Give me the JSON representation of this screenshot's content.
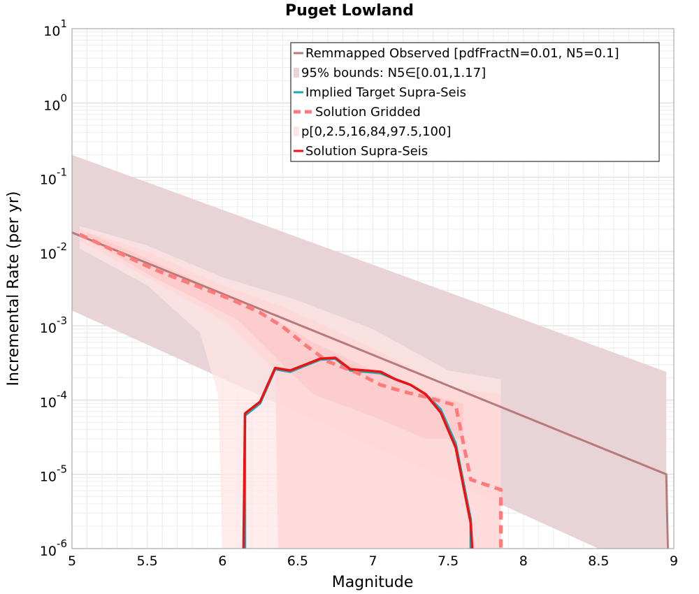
{
  "chart_data": {
    "type": "line",
    "title": "Puget Lowland",
    "xlabel": "Magnitude",
    "ylabel": "Incremental Rate (per yr)",
    "xlim": [
      5,
      9
    ],
    "ylim_log10": [
      -6,
      1
    ],
    "yscale": "log",
    "x_ticks": [
      "5",
      "5.5",
      "6",
      "6.5",
      "7",
      "7.5",
      "8",
      "8.5",
      "9"
    ],
    "y_ticks": [
      {
        "base": "10",
        "exp": "1"
      },
      {
        "base": "10",
        "exp": "0"
      },
      {
        "base": "10",
        "exp": "-1"
      },
      {
        "base": "10",
        "exp": "-2"
      },
      {
        "base": "10",
        "exp": "-3"
      },
      {
        "base": "10",
        "exp": "-4"
      },
      {
        "base": "10",
        "exp": "-5"
      },
      {
        "base": "10",
        "exp": "-6"
      }
    ],
    "grid": true,
    "legend_position": "top-right",
    "bands": [
      {
        "name": "95% bounds: N5∈[0.01,1.17]",
        "color": "#e8d4d6",
        "x": [
          5.0,
          8.95,
          8.95,
          8.5,
          5.0
        ],
        "y": [
          0.2,
          0.00024,
          1e-06,
          1e-06,
          0.0016
        ]
      },
      {
        "name": "p[0,2.5,16,84,97.5,100] outer",
        "color": "#ffe6e6",
        "x": [
          5.05,
          5.5,
          6.0,
          6.5,
          7.0,
          7.5,
          7.85,
          7.85,
          6.0,
          5.97,
          5.85,
          5.5,
          5.05
        ],
        "y": [
          0.022,
          0.012,
          0.0045,
          0.0022,
          0.0009,
          0.00025,
          0.00019,
          1e-06,
          1e-06,
          0.00012,
          0.0008,
          0.0035,
          0.011
        ]
      },
      {
        "name": "p[0,2.5,16,84,97.5,100] mid",
        "color": "#ffd6d6",
        "x": [
          5.05,
          5.5,
          6.0,
          6.4,
          7.0,
          7.5,
          7.85,
          7.85,
          6.37,
          6.35,
          6.0,
          5.5,
          5.05
        ],
        "y": [
          0.02,
          0.01,
          0.0035,
          0.0018,
          0.0005,
          0.00015,
          0.00012,
          1e-06,
          1e-06,
          0.00025,
          0.0012,
          0.0045,
          0.014
        ]
      },
      {
        "name": "p[0,2.5,16,84,97.5,100] inner",
        "color": "#fcc8c8",
        "x": [
          5.1,
          5.5,
          6.0,
          6.3,
          6.6,
          7.0,
          7.35,
          7.6,
          7.6,
          7.35,
          7.0,
          6.6,
          6.4,
          6.1,
          5.5,
          5.1
        ],
        "y": [
          0.018,
          0.008,
          0.0028,
          0.0014,
          0.0006,
          0.00025,
          0.00012,
          9e-05,
          3e-05,
          3e-05,
          6e-05,
          0.00012,
          0.0003,
          0.0012,
          0.005,
          0.015
        ]
      }
    ],
    "series": [
      {
        "name": "Remmapped Observed [pdfFractN=0.01, N5=0.1]",
        "color": "#b77a7a",
        "style": "solid",
        "x": [
          5.0,
          8.95,
          8.96
        ],
        "y": [
          0.018,
          1e-05,
          1e-06
        ]
      },
      {
        "name": "Implied Target Supra-Seis",
        "color": "#1aa9b8",
        "style": "solid",
        "x": [
          6.15,
          6.15,
          6.25,
          6.35,
          6.45,
          6.55,
          6.65,
          6.75,
          6.85,
          6.95,
          7.05,
          7.15,
          7.25,
          7.35,
          7.45,
          7.55,
          7.65,
          7.65
        ],
        "y": [
          1e-06,
          6.2e-05,
          9e-05,
          0.00026,
          0.00024,
          0.00029,
          0.00035,
          0.00036,
          0.00025,
          0.00024,
          0.00023,
          0.00019,
          0.00016,
          0.00012,
          7.5e-05,
          2.6e-05,
          2.5e-06,
          1e-06
        ]
      },
      {
        "name": "Solution Gridded",
        "color": "#ff7a7a",
        "style": "dashed",
        "x": [
          5.05,
          5.3,
          5.55,
          5.8,
          6.05,
          6.25,
          6.4,
          6.55,
          6.7,
          6.9,
          7.05,
          7.2,
          7.35,
          7.55,
          7.65,
          7.85,
          7.85
        ],
        "y": [
          0.017,
          0.0098,
          0.0057,
          0.0036,
          0.0023,
          0.0015,
          0.00097,
          0.00055,
          0.00033,
          0.00023,
          0.00016,
          0.00013,
          0.00011,
          8.5e-05,
          8.5e-06,
          6.2e-06,
          1e-06
        ]
      },
      {
        "name": "Solution Supra-Seis",
        "color": "#ee1111",
        "style": "solid",
        "x": [
          6.14,
          6.15,
          6.25,
          6.35,
          6.45,
          6.55,
          6.65,
          6.75,
          6.85,
          6.95,
          7.05,
          7.15,
          7.25,
          7.35,
          7.45,
          7.55,
          7.65,
          7.66
        ],
        "y": [
          1e-06,
          6.6e-05,
          9.5e-05,
          0.00027,
          0.00025,
          0.0003,
          0.00036,
          0.00037,
          0.00026,
          0.00025,
          0.00024,
          0.00019,
          0.00016,
          0.00012,
          6.8e-05,
          2.3e-05,
          2.2e-06,
          1e-06
        ]
      }
    ],
    "legend": [
      {
        "label": "Remmapped Observed [pdfFractN=0.01, N5=0.1]",
        "kind": "line",
        "color": "#b77a7a"
      },
      {
        "label": "95% bounds: N5∈[0.01,1.17]",
        "kind": "band",
        "color": "#e8d4d6"
      },
      {
        "label": "Implied Target Supra-Seis",
        "kind": "line",
        "color": "#1aa9b8"
      },
      {
        "label": "Solution Gridded",
        "kind": "dashed",
        "color": "#ff7a7a"
      },
      {
        "label": "p[0,2.5,16,84,97.5,100]",
        "kind": "band",
        "color": "#ffe6e6"
      },
      {
        "label": "Solution Supra-Seis",
        "kind": "line",
        "color": "#ee1111"
      }
    ]
  }
}
